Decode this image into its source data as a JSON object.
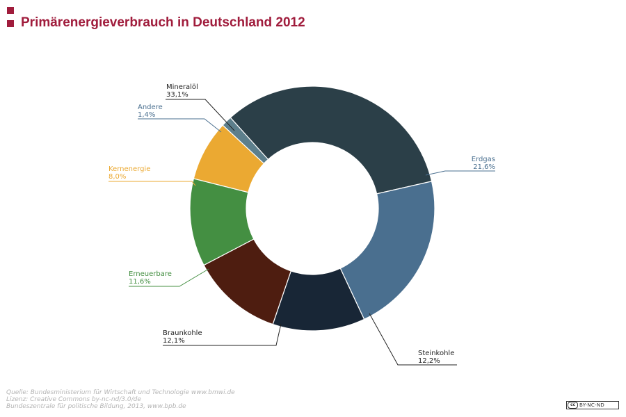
{
  "header": {
    "title": "Primärenergieverbrauch in Deutschland 2012"
  },
  "chart_data": {
    "type": "pie",
    "title": "Primärenergieverbrauch in Deutschland 2012",
    "donut": true,
    "slices": [
      {
        "label": "Mineralöl",
        "value_text": "33,1%",
        "value": 33.1,
        "color": "#2b3f48"
      },
      {
        "label": "Erdgas",
        "value_text": "21,6%",
        "value": 21.6,
        "color": "#4a6f8f"
      },
      {
        "label": "Steinkohle",
        "value_text": "12,2%",
        "value": 12.2,
        "color": "#182636"
      },
      {
        "label": "Braunkohle",
        "value_text": "12,1%",
        "value": 12.1,
        "color": "#4e1d10"
      },
      {
        "label": "Erneuerbare",
        "value_text": "11,6%",
        "value": 11.6,
        "color": "#448f42"
      },
      {
        "label": "Kernenergie",
        "value_text": "8,0%",
        "value": 8.0,
        "color": "#eba932"
      },
      {
        "label": "Andere",
        "value_text": "1,4%",
        "value": 1.4,
        "color": "#5d7f8c"
      }
    ],
    "label_colors": {
      "Mineralöl": "#222222",
      "Erdgas": "#4a6f8f",
      "Steinkohle": "#222222",
      "Braunkohle": "#222222",
      "Erneuerbare": "#448f42",
      "Kernenergie": "#eba932",
      "Andere": "#4a6f8f"
    }
  },
  "footer": {
    "source": "Quelle: Bundesministerium für Wirtschaft und Technologie www.bmwi.de",
    "license": "Lizenz: Creative Commons by-nc-nd/3.0/de",
    "publisher": "Bundeszentrale für politische Bildung, 2013, www.bpb.de"
  },
  "license_badge": {
    "logo": "cc",
    "text": "BY-NC-ND"
  }
}
